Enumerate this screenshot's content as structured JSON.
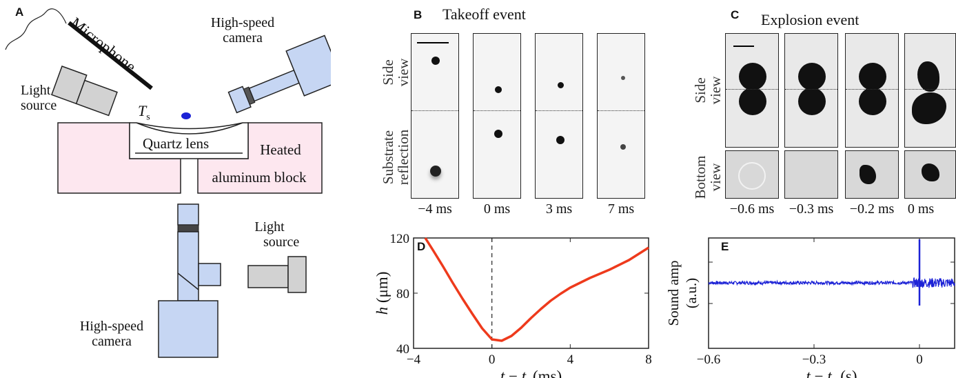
{
  "panels": {
    "a": {
      "letter": "A",
      "microphone": "Microphone",
      "light_source_top": [
        "Light",
        "source"
      ],
      "camera_top": [
        "High-speed",
        "camera"
      ],
      "ts_symbol": "T",
      "ts_sub": "s",
      "quartz_lens": "Quartz lens",
      "heated_block": [
        "Heated",
        "aluminum block"
      ],
      "light_source_bottom": [
        "Light",
        "source"
      ],
      "camera_bottom": [
        "High-speed",
        "camera"
      ]
    },
    "b": {
      "letter": "B",
      "title": "Takeoff event",
      "side_view": [
        "Side",
        "view"
      ],
      "substrate": [
        "Substrate",
        "reflection"
      ],
      "times": [
        "−4 ms",
        "0 ms",
        "3 ms",
        "7 ms"
      ]
    },
    "c": {
      "letter": "C",
      "title": "Explosion event",
      "side_view": [
        "Side",
        "view"
      ],
      "bottom_view": [
        "Bottom",
        "view"
      ],
      "times": [
        "−0.6 ms",
        "−0.3 ms",
        "−0.2 ms",
        "0 ms"
      ]
    },
    "d": {
      "letter": "D"
    },
    "e": {
      "letter": "E"
    }
  },
  "colors": {
    "lens_fill": "#ffffff",
    "block_fill": "#fde7ef",
    "device_fill": "#c6d6f3",
    "light_fill": "#d2d2d2",
    "drop": "#1c22d6",
    "curve_d": "#ee3a1c",
    "curve_e": "#1c22d6"
  },
  "chart_data": [
    {
      "id": "D",
      "type": "line",
      "xlabel": "t − t_t (ms)",
      "ylabel": "h (μm)",
      "xlim": [
        -4,
        8
      ],
      "ylim": [
        40,
        120
      ],
      "xticks": [
        -4,
        0,
        4,
        8
      ],
      "yticks": [
        40,
        80,
        120
      ],
      "x_tick_labels": [
        "−4",
        "0",
        "4",
        "8"
      ],
      "y_tick_labels": [
        "40",
        "80",
        "120"
      ],
      "vline_x": 0,
      "series": [
        {
          "x": [
            -3.4,
            -3,
            -2.5,
            -2,
            -1.5,
            -1,
            -0.5,
            0,
            0.5,
            1,
            1.5,
            2,
            2.5,
            3,
            3.5,
            4,
            5,
            6,
            7,
            8
          ],
          "y": [
            120,
            111,
            99.5,
            87.5,
            76,
            65,
            54.5,
            46.5,
            45.5,
            49,
            55,
            62,
            68.5,
            74.5,
            79.5,
            84,
            91,
            97,
            104,
            113
          ]
        }
      ]
    },
    {
      "id": "E",
      "type": "line",
      "xlabel": "t − t_e (s)",
      "ylabel": "Sound amp (a.u.)",
      "xlim": [
        -0.6,
        0.1
      ],
      "xticks": [
        -0.6,
        -0.3,
        0
      ],
      "x_tick_labels": [
        "−0.6",
        "−0.3",
        "0"
      ],
      "baseline": 0,
      "noise_amplitude": 0.04,
      "spike_x": 0,
      "spike_range": [
        -0.55,
        1.05
      ]
    }
  ]
}
